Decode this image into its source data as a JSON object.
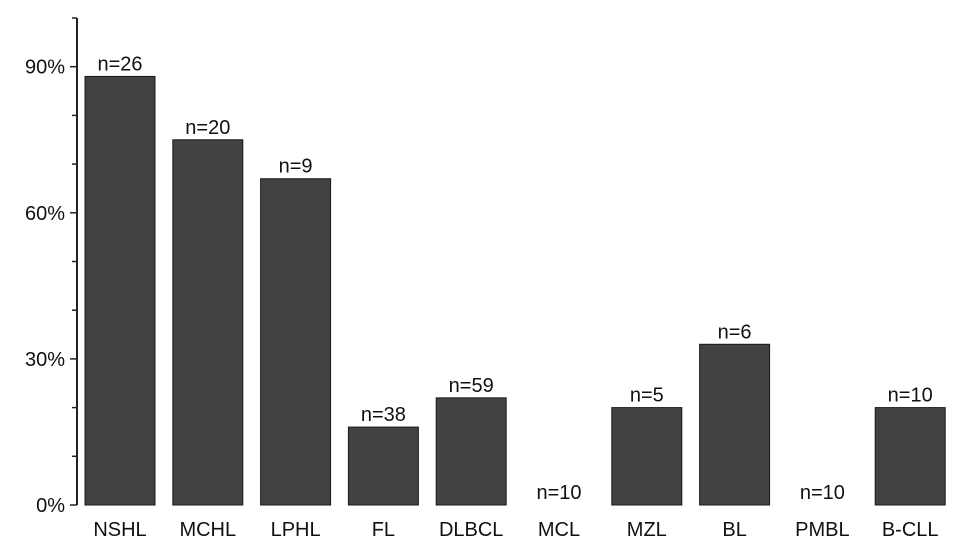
{
  "chart_data": {
    "type": "bar",
    "title": "",
    "xlabel": "",
    "ylabel": "",
    "ylim": [
      0,
      100
    ],
    "yticks": [
      {
        "value": 0,
        "label": "0%"
      },
      {
        "value": 30,
        "label": "30%"
      },
      {
        "value": 60,
        "label": "60%"
      },
      {
        "value": 90,
        "label": "90%"
      }
    ],
    "minor_tick_step": 10,
    "grid": false,
    "legend": "none",
    "bar_color": "#424242",
    "categories": [
      "NSHL",
      "MCHL",
      "LPHL",
      "FL",
      "DLBCL",
      "MCL",
      "MZL",
      "BL",
      "PMBL",
      "B-CLL"
    ],
    "values": [
      88,
      75,
      67,
      16,
      22,
      0,
      20,
      33,
      0,
      20
    ],
    "data_labels": [
      "n=26",
      "n=20",
      "n=9",
      "n=38",
      "n=59",
      "n=10",
      "n=5",
      "n=6",
      "n=10",
      "n=10"
    ]
  }
}
